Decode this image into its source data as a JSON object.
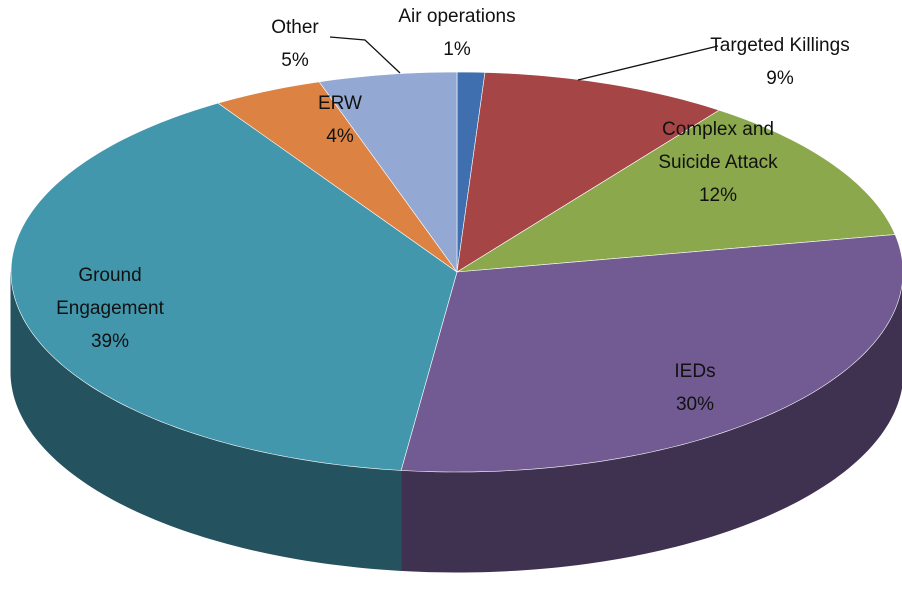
{
  "chart_data": {
    "type": "pie3d",
    "categories": [
      "Air operations",
      "Targeted Killings",
      "Complex and Suicide Attack",
      "IEDs",
      "Ground Engagement",
      "ERW",
      "Other"
    ],
    "values": [
      1,
      9,
      12,
      30,
      39,
      4,
      5
    ],
    "value_labels": [
      "1%",
      "9%",
      "12%",
      "30%",
      "39%",
      "4%",
      "5%"
    ],
    "colors": [
      "#3f6faf",
      "#a64545",
      "#8ba84d",
      "#725a92",
      "#4297ad",
      "#dc8243",
      "#93a9d3"
    ]
  }
}
